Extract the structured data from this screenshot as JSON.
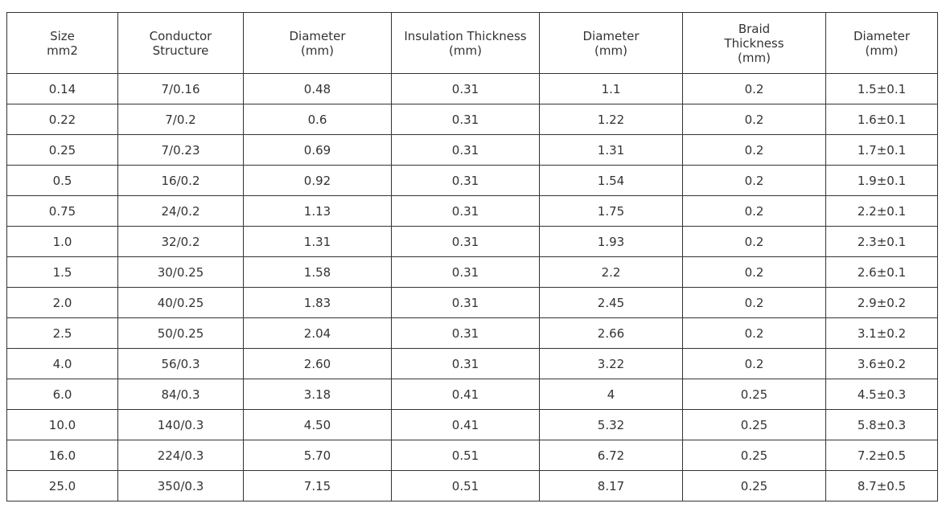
{
  "table": {
    "headers": [
      {
        "lines": [
          "Size",
          "mm2"
        ]
      },
      {
        "lines": [
          "Conductor",
          "Structure"
        ]
      },
      {
        "lines": [
          "Diameter",
          "(mm)"
        ]
      },
      {
        "lines": [
          "Insulation Thickness",
          "(mm)"
        ]
      },
      {
        "lines": [
          "Diameter",
          "(mm)"
        ]
      },
      {
        "lines": [
          "Braid",
          "Thickness",
          "(mm)"
        ]
      },
      {
        "lines": [
          "Diameter",
          "(mm)"
        ]
      }
    ],
    "rows": [
      [
        "0.14",
        "7/0.16",
        "0.48",
        "0.31",
        "1.1",
        "0.2",
        "1.5±0.1"
      ],
      [
        "0.22",
        "7/0.2",
        "0.6",
        "0.31",
        "1.22",
        "0.2",
        "1.6±0.1"
      ],
      [
        "0.25",
        "7/0.23",
        "0.69",
        "0.31",
        "1.31",
        "0.2",
        "1.7±0.1"
      ],
      [
        "0.5",
        "16/0.2",
        "0.92",
        "0.31",
        "1.54",
        "0.2",
        "1.9±0.1"
      ],
      [
        "0.75",
        "24/0.2",
        "1.13",
        "0.31",
        "1.75",
        "0.2",
        "2.2±0.1"
      ],
      [
        "1.0",
        "32/0.2",
        "1.31",
        "0.31",
        "1.93",
        "0.2",
        "2.3±0.1"
      ],
      [
        "1.5",
        "30/0.25",
        "1.58",
        "0.31",
        "2.2",
        "0.2",
        "2.6±0.1"
      ],
      [
        "2.0",
        "40/0.25",
        "1.83",
        "0.31",
        "2.45",
        "0.2",
        "2.9±0.2"
      ],
      [
        "2.5",
        "50/0.25",
        "2.04",
        "0.31",
        "2.66",
        "0.2",
        "3.1±0.2"
      ],
      [
        "4.0",
        "56/0.3",
        "2.60",
        "0.31",
        "3.22",
        "0.2",
        "3.6±0.2"
      ],
      [
        "6.0",
        "84/0.3",
        "3.18",
        "0.41",
        "4",
        "0.25",
        "4.5±0.3"
      ],
      [
        "10.0",
        "140/0.3",
        "4.50",
        "0.41",
        "5.32",
        "0.25",
        "5.8±0.3"
      ],
      [
        "16.0",
        "224/0.3",
        "5.70",
        "0.51",
        "6.72",
        "0.25",
        "7.2±0.5"
      ],
      [
        "25.0",
        "350/0.3",
        "7.15",
        "0.51",
        "8.17",
        "0.25",
        "8.7±0.5"
      ]
    ]
  }
}
